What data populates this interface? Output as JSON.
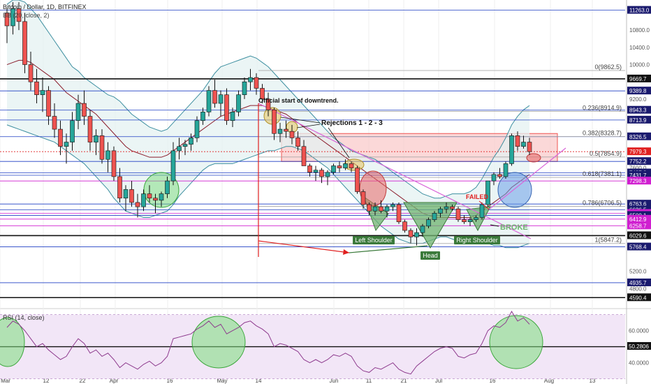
{
  "header": {
    "title": "Bitcoin / Dollar, 1D, BITFINEX",
    "indicator_label": "BB (20, close, 2)"
  },
  "colors": {
    "background": "#ffffff",
    "up_candle": "#26a69a",
    "down_candle": "#ef5350",
    "candle_border": "#111111",
    "bb_band": "#3d8fa0",
    "bb_fill": "#e4f1f1",
    "bb_basis": "#8b1d2c",
    "rsi_line": "#8e3b8e",
    "rsi_band_fill": "#f2e6f7",
    "blue_level": "#1f3fc4",
    "magenta_level": "#d01fd0",
    "resistance_zone": "#f9c8c8",
    "trend_line": "#d966d9",
    "annotation_red": "#e02020",
    "shoulder_fill": "#6fb36f",
    "label_box": "#3b7a3b",
    "price_label_red": "#e02020",
    "price_label_navy": "#1a1a6e"
  },
  "chart_data": [
    {
      "type": "candlestick",
      "title": "Bitcoin / Dollar, 1D, BITFINEX",
      "ylim": [
        4400,
        11500
      ],
      "x_ticks": [
        "Mar",
        "12",
        "22",
        "Apr",
        "16",
        "May",
        "14",
        "Jun",
        "11",
        "21",
        "Jul",
        "16",
        "Aug",
        "13"
      ],
      "price_scale_labels": [
        {
          "value": 11263.0,
          "style": "navy"
        },
        {
          "value": 10800.0,
          "style": "plain"
        },
        {
          "value": 10400.0,
          "style": "plain"
        },
        {
          "value": 10000.0,
          "style": "plain"
        },
        {
          "value": 9669.7,
          "style": "black"
        },
        {
          "value": 9389.8,
          "style": "navy"
        },
        {
          "value": 9200.0,
          "style": "plain"
        },
        {
          "value": 8943.3,
          "style": "navy"
        },
        {
          "value": 8713.9,
          "style": "navy"
        },
        {
          "value": 8326.5,
          "style": "navy"
        },
        {
          "value": 7979.3,
          "style": "red"
        },
        {
          "value": 7752.2,
          "style": "navy"
        },
        {
          "value": 7600.0,
          "style": "plain"
        },
        {
          "value": 7487.8,
          "style": "navy"
        },
        {
          "value": 7431.7,
          "style": "navy"
        },
        {
          "value": 7298.3,
          "style": "magenta"
        },
        {
          "value": 6763.6,
          "style": "navy"
        },
        {
          "value": 6626.5,
          "style": "navy"
        },
        {
          "value": 6547.3,
          "style": "magenta"
        },
        {
          "value": 6500.1,
          "style": "navy"
        },
        {
          "value": 6412.9,
          "style": "magenta"
        },
        {
          "value": 6258.7,
          "style": "magenta"
        },
        {
          "value": 6029.6,
          "style": "black"
        },
        {
          "value": 5768.4,
          "style": "navy"
        },
        {
          "value": 5200.0,
          "style": "plain"
        },
        {
          "value": 4935.7,
          "style": "navy"
        },
        {
          "value": 4800.0,
          "style": "plain"
        },
        {
          "value": 4590.4,
          "style": "black"
        }
      ],
      "fib_levels": [
        {
          "label": "0(9862.5)",
          "price": 9862.5
        },
        {
          "label": "0.236(8914.9)",
          "price": 8914.9
        },
        {
          "label": "0.382(8328.7)",
          "price": 8328.7
        },
        {
          "label": "0.5(7854.9)",
          "price": 7854.9
        },
        {
          "label": "0.618(7381.1)",
          "price": 7381.1
        },
        {
          "label": "0.786(6706.5)",
          "price": 6706.5
        },
        {
          "label": "1(5847.2)",
          "price": 5847.2
        }
      ],
      "annotations": {
        "downtrend": "Official start of downtrend.",
        "rejections": "Rejections 1 - 2 - 3",
        "left_shoulder": "Left Shoulder",
        "head": "Head",
        "right_shoulder": "Right Shoulder",
        "failed": "FAILED",
        "broke": "BROKE"
      },
      "candles": [
        [
          11200,
          11300,
          10500,
          10900
        ],
        [
          10900,
          11450,
          10700,
          11300
        ],
        [
          11300,
          11450,
          10800,
          11000
        ],
        [
          11000,
          11200,
          9800,
          10000
        ],
        [
          10000,
          10300,
          9400,
          9600
        ],
        [
          9600,
          9900,
          9100,
          9300
        ],
        [
          9300,
          9700,
          8900,
          9400
        ],
        [
          9400,
          9500,
          8600,
          8800
        ],
        [
          8800,
          9100,
          8300,
          8500
        ],
        [
          8500,
          8700,
          7900,
          8100
        ],
        [
          8100,
          8400,
          7700,
          8200
        ],
        [
          8200,
          8900,
          8000,
          8700
        ],
        [
          8700,
          9300,
          8500,
          9100
        ],
        [
          9100,
          9400,
          8600,
          8800
        ],
        [
          8800,
          8950,
          8000,
          8200
        ],
        [
          8200,
          8500,
          7900,
          8350
        ],
        [
          8350,
          8500,
          7700,
          7800
        ],
        [
          7800,
          8200,
          7500,
          8000
        ],
        [
          8000,
          8100,
          7300,
          7400
        ],
        [
          7400,
          7600,
          6800,
          6900
        ],
        [
          6900,
          7200,
          6600,
          7100
        ],
        [
          7100,
          7300,
          6700,
          6800
        ],
        [
          6800,
          7000,
          6450,
          6700
        ],
        [
          6700,
          7100,
          6600,
          7000
        ],
        [
          7000,
          7200,
          6800,
          6900
        ],
        [
          6900,
          7000,
          6550,
          6850
        ],
        [
          6850,
          7050,
          6700,
          7000
        ],
        [
          7000,
          7400,
          6900,
          7300
        ],
        [
          7300,
          8200,
          7200,
          8000
        ],
        [
          8000,
          8300,
          7800,
          8100
        ],
        [
          8100,
          8250,
          7900,
          8150
        ],
        [
          8150,
          8400,
          8000,
          8300
        ],
        [
          8300,
          8800,
          8200,
          8700
        ],
        [
          8700,
          9000,
          8600,
          8900
        ],
        [
          8900,
          9500,
          8800,
          9400
        ],
        [
          9400,
          9650,
          9000,
          9100
        ],
        [
          9100,
          9400,
          8800,
          9300
        ],
        [
          9300,
          9450,
          8600,
          8700
        ],
        [
          8700,
          9000,
          8550,
          8900
        ],
        [
          8900,
          9400,
          8800,
          9300
        ],
        [
          9300,
          9700,
          9200,
          9600
        ],
        [
          9600,
          9900,
          9400,
          9700
        ],
        [
          9700,
          9800,
          9300,
          9450
        ],
        [
          9450,
          9550,
          9100,
          9200
        ],
        [
          9200,
          9350,
          8800,
          8950
        ],
        [
          8950,
          9000,
          8250,
          8400
        ],
        [
          8400,
          8650,
          8200,
          8500
        ],
        [
          8500,
          8700,
          8300,
          8450
        ],
        [
          8450,
          8600,
          8150,
          8300
        ],
        [
          8300,
          8450,
          8000,
          8100
        ],
        [
          8100,
          8250,
          7700,
          7650
        ],
        [
          7650,
          7700,
          7400,
          7500
        ],
        [
          7500,
          7650,
          7300,
          7550
        ],
        [
          7550,
          7600,
          7250,
          7400
        ],
        [
          7400,
          7550,
          7200,
          7500
        ],
        [
          7500,
          7700,
          7450,
          7650
        ],
        [
          7650,
          7750,
          7500,
          7600
        ],
        [
          7600,
          7800,
          7550,
          7700
        ],
        [
          7700,
          7750,
          7500,
          7600
        ],
        [
          7600,
          7650,
          7000,
          7050
        ],
        [
          7050,
          7100,
          6650,
          6750
        ],
        [
          6750,
          6800,
          6500,
          6600
        ],
        [
          6600,
          6800,
          6500,
          6700
        ],
        [
          6700,
          6850,
          6550,
          6600
        ],
        [
          6600,
          6750,
          6450,
          6700
        ],
        [
          6700,
          6800,
          6600,
          6750
        ],
        [
          6750,
          6800,
          6300,
          6350
        ],
        [
          6350,
          6400,
          6100,
          6150
        ],
        [
          6150,
          6200,
          5850,
          6000
        ],
        [
          6000,
          6200,
          5800,
          6100
        ],
        [
          6100,
          6300,
          6000,
          6250
        ],
        [
          6250,
          6450,
          6200,
          6400
        ],
        [
          6400,
          6600,
          6350,
          6550
        ],
        [
          6550,
          6700,
          6450,
          6650
        ],
        [
          6650,
          6800,
          6550,
          6700
        ],
        [
          6700,
          6750,
          6600,
          6650
        ],
        [
          6650,
          6700,
          6350,
          6400
        ],
        [
          6400,
          6500,
          6300,
          6350
        ],
        [
          6350,
          6450,
          6250,
          6400
        ],
        [
          6400,
          6500,
          6350,
          6450
        ],
        [
          6450,
          6800,
          6400,
          6750
        ],
        [
          6750,
          7300,
          6700,
          7300
        ],
        [
          7300,
          7500,
          7200,
          7450
        ],
        [
          7450,
          7600,
          7350,
          7400
        ],
        [
          7400,
          7750,
          7350,
          7700
        ],
        [
          7700,
          8400,
          7650,
          8350
        ],
        [
          8350,
          8450,
          8000,
          8100
        ],
        [
          8100,
          8350,
          8050,
          8200
        ],
        [
          8200,
          8300,
          7900,
          7980
        ]
      ],
      "bb_upper": [
        11400,
        11500,
        11500,
        11450,
        11300,
        11150,
        10950,
        10750,
        10550,
        10350,
        10150,
        9950,
        9850,
        9700,
        9600,
        9500,
        9400,
        9300,
        9250,
        9150,
        9000,
        8850,
        8750,
        8650,
        8550,
        8500,
        8450,
        8500,
        8650,
        8800,
        8950,
        9100,
        9250,
        9400,
        9600,
        9800,
        9950,
        10000,
        10050,
        10100,
        10150,
        10200,
        10150,
        10050,
        9950,
        9800,
        9650,
        9500,
        9350,
        9200,
        9050,
        8900,
        8750,
        8600,
        8450,
        8300,
        8200,
        8100,
        8000,
        7950,
        7900,
        7850,
        7800,
        7700,
        7600,
        7500,
        7400,
        7300,
        7200,
        7100,
        7000,
        6950,
        6900,
        6900,
        6950,
        7000,
        7000,
        7000,
        7050,
        7150,
        7350,
        7600,
        7850,
        8050,
        8300,
        8600,
        8800,
        8950,
        9050
      ],
      "bb_basis": [
        10000,
        10050,
        10100,
        10100,
        10050,
        9950,
        9850,
        9750,
        9650,
        9500,
        9350,
        9250,
        9150,
        9050,
        8950,
        8850,
        8700,
        8550,
        8400,
        8250,
        8100,
        8000,
        7950,
        7900,
        7850,
        7850,
        7850,
        7900,
        8000,
        8100,
        8200,
        8300,
        8400,
        8500,
        8600,
        8700,
        8800,
        8850,
        8900,
        8950,
        9000,
        9050,
        9050,
        9050,
        9000,
        8950,
        8900,
        8850,
        8750,
        8650,
        8550,
        8450,
        8350,
        8250,
        8150,
        8050,
        7950,
        7850,
        7750,
        7650,
        7550,
        7450,
        7350,
        7250,
        7150,
        7050,
        6950,
        6850,
        6750,
        6650,
        6550,
        6500,
        6450,
        6450,
        6450,
        6450,
        6450,
        6450,
        6450,
        6500,
        6600,
        6700,
        6800,
        6900,
        7000,
        7150,
        7250,
        7350,
        7450
      ],
      "bb_lower": [
        8600,
        8550,
        8500,
        8450,
        8400,
        8350,
        8300,
        8250,
        8200,
        8100,
        8000,
        7900,
        7800,
        7700,
        7550,
        7400,
        7250,
        7100,
        6900,
        6750,
        6600,
        6550,
        6500,
        6450,
        6450,
        6500,
        6550,
        6600,
        6750,
        6950,
        7100,
        7250,
        7400,
        7550,
        7650,
        7700,
        7700,
        7700,
        7700,
        7750,
        7800,
        7850,
        7900,
        7950,
        8000,
        8000,
        8050,
        8100,
        8100,
        8050,
        8000,
        7900,
        7800,
        7700,
        7600,
        7450,
        7300,
        7150,
        7000,
        6850,
        6700,
        6550,
        6400,
        6250,
        6150,
        6050,
        5950,
        5900,
        5850,
        5850,
        5850,
        5900,
        5950,
        6000,
        6000,
        5950,
        5900,
        5900,
        5900,
        5900,
        5900,
        5850,
        5800,
        5800,
        5750,
        5750,
        5750,
        5800,
        5850
      ]
    },
    {
      "type": "line",
      "title": "RSI (14, close)",
      "ylim": [
        32,
        72
      ],
      "price_scale_labels": [
        {
          "value": "60.0000",
          "style": "plain"
        },
        {
          "value": "50.2806",
          "style": "black"
        },
        {
          "value": "40.0000",
          "style": "plain"
        }
      ],
      "bands": [
        70,
        50,
        30
      ],
      "series": [
        {
          "values": [
            62,
            66,
            64,
            60,
            55,
            50,
            52,
            48,
            45,
            42,
            44,
            50,
            55,
            52,
            46,
            48,
            44,
            46,
            42,
            37,
            40,
            38,
            36,
            39,
            41,
            38,
            40,
            44,
            55,
            56,
            57,
            58,
            61,
            63,
            66,
            62,
            64,
            58,
            60,
            62,
            65,
            66,
            63,
            61,
            58,
            50,
            52,
            51,
            49,
            47,
            42,
            40,
            42,
            40,
            42,
            45,
            44,
            46,
            44,
            38,
            35,
            34,
            37,
            36,
            38,
            40,
            36,
            34,
            33,
            38,
            41,
            44,
            47,
            49,
            50,
            49,
            44,
            43,
            45,
            46,
            52,
            60,
            63,
            62,
            65,
            72,
            66,
            68,
            64
          ]
        }
      ]
    }
  ]
}
